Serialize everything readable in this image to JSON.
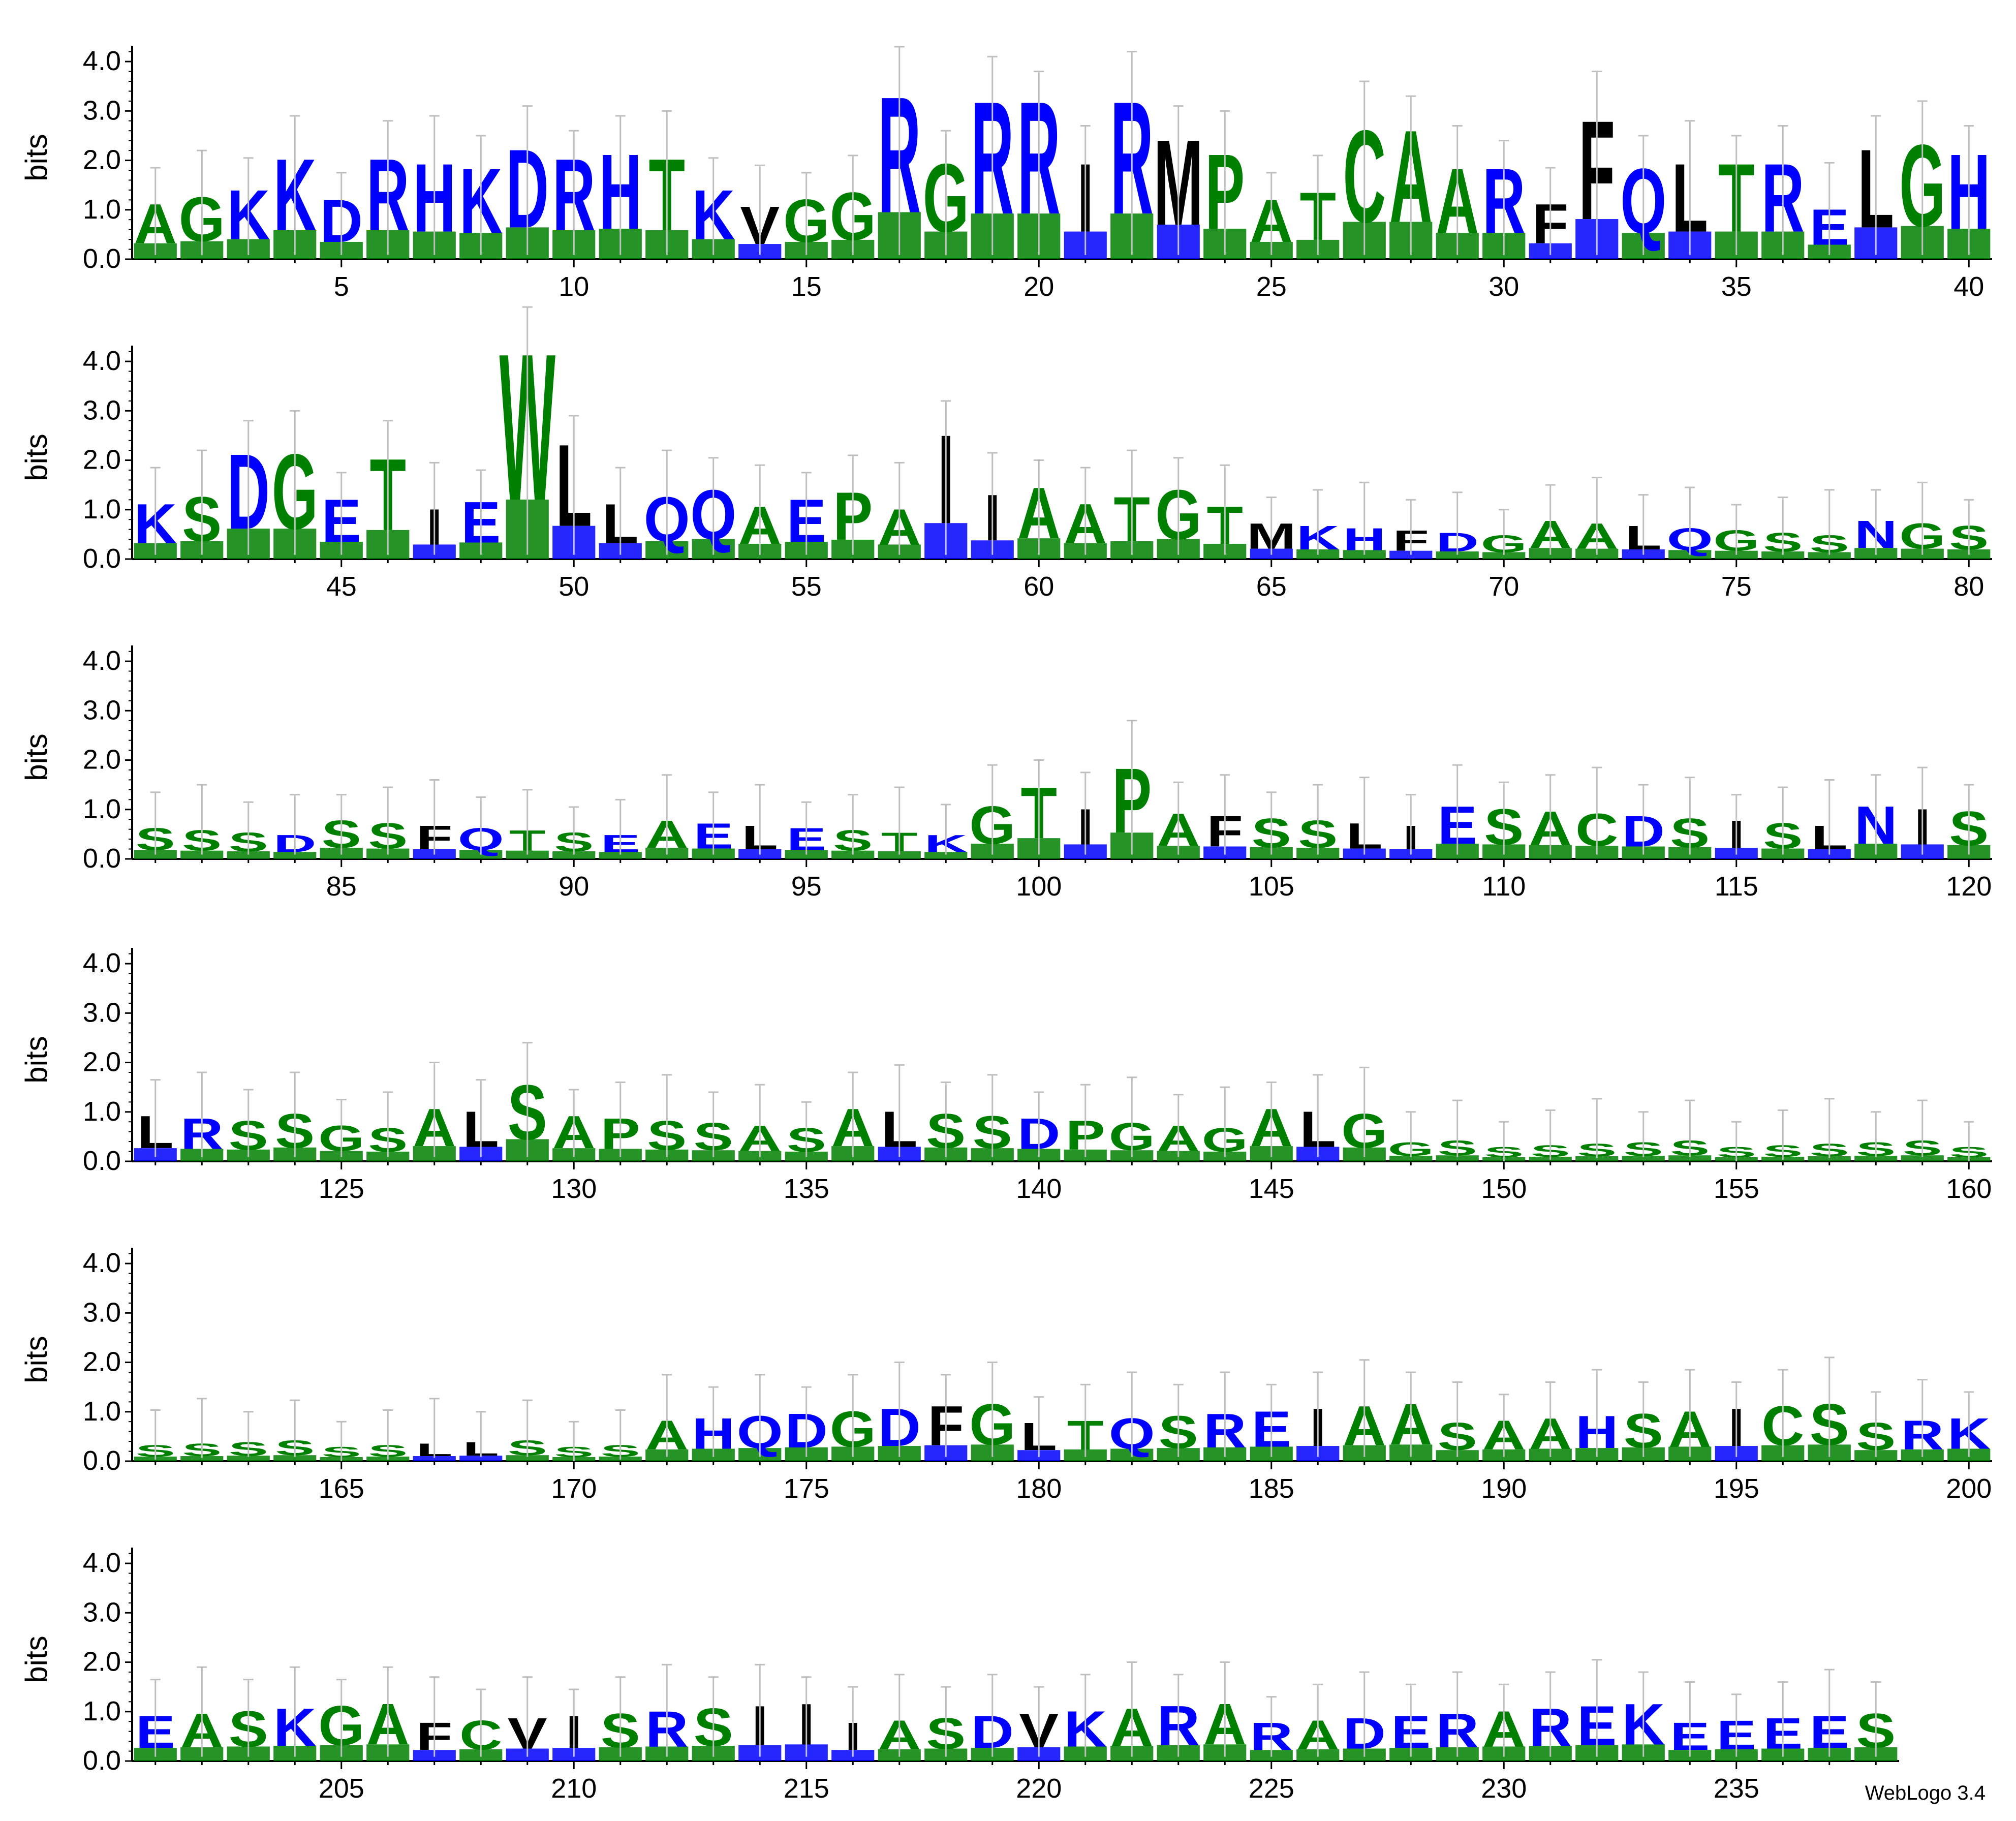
{
  "chart_data": {
    "type": "sequence-logo",
    "software_credit": "WebLogo 3.4",
    "ylabel": "bits",
    "ylim": [
      0,
      4.32
    ],
    "y_ticks": [
      "0.0",
      "1.0",
      "2.0",
      "3.0",
      "4.0"
    ],
    "first_position": 1,
    "last_position": 238,
    "positions_per_row": 40,
    "x_tick_interval": 5,
    "colors": {
      "green": "#008000",
      "blue": "#0000ff",
      "black": "#000000",
      "error_bar": "#bfbfbf"
    },
    "color_groups": {
      "green": [
        "G",
        "S",
        "T",
        "Y",
        "C",
        "Q",
        "N",
        "A",
        "H",
        "W",
        "P"
      ],
      "blue": [
        "K",
        "R",
        "D",
        "E",
        "Q",
        "N"
      ],
      "black": [
        "F",
        "L",
        "I",
        "M",
        "V",
        "W",
        "P",
        "C",
        "Y"
      ]
    },
    "dominant_letters": {
      "1": "A",
      "2": "G",
      "3": "K",
      "4": "K",
      "5": "D",
      "6": "R",
      "7": "H",
      "8": "K",
      "9": "D",
      "10": "R",
      "11": "H",
      "12": "T",
      "13": "K",
      "14": "V",
      "15": "G",
      "16": "G",
      "17": "R",
      "18": "G",
      "19": "R",
      "20": "R",
      "21": "I",
      "22": "R",
      "23": "M",
      "24": "P",
      "25": "A",
      "26": "T",
      "27": "C",
      "28": "A",
      "29": "A",
      "30": "R",
      "31": "F",
      "32": "F",
      "33": "Q",
      "34": "L",
      "35": "T",
      "36": "R",
      "37": "E",
      "38": "L",
      "39": "G",
      "40": "H",
      "41": "K",
      "42": "S",
      "43": "D",
      "44": "G",
      "45": "E",
      "46": "T",
      "47": "I",
      "48": "E",
      "49": "W",
      "50": "L",
      "51": "L",
      "52": "Q",
      "53": "Q",
      "54": "A",
      "55": "E",
      "56": "P",
      "57": "A",
      "58": "I",
      "59": "I",
      "60": "A",
      "61": "A",
      "62": "T",
      "63": "G",
      "64": "T",
      "65": "M",
      "66": "K",
      "67": "H",
      "68": "F",
      "69": "D",
      "70": "G",
      "71": "A",
      "72": "A",
      "73": "L",
      "74": "Q",
      "75": "G",
      "76": "S",
      "77": "S",
      "78": "N",
      "79": "G",
      "80": "S",
      "81": "S",
      "82": "S",
      "83": "S",
      "84": "D",
      "85": "S",
      "86": "S",
      "87": "F",
      "88": "Q",
      "89": "T",
      "90": "S",
      "91": "E",
      "92": "A",
      "93": "E",
      "94": "L",
      "95": "E",
      "96": "S",
      "97": "T",
      "98": "K",
      "99": "G",
      "100": "T",
      "101": "I",
      "102": "P",
      "103": "A",
      "104": "F",
      "105": "S",
      "106": "S",
      "107": "L",
      "108": "I",
      "109": "E",
      "110": "S",
      "111": "A",
      "112": "C",
      "113": "D",
      "114": "S",
      "115": "I",
      "116": "S",
      "117": "L",
      "118": "N",
      "119": "I",
      "120": "S",
      "121": "L",
      "122": "R",
      "123": "S",
      "124": "S",
      "125": "G",
      "126": "S",
      "127": "A",
      "128": "L",
      "129": "S",
      "130": "A",
      "131": "P",
      "132": "S",
      "133": "S",
      "134": "A",
      "135": "S",
      "136": "A",
      "137": "L",
      "138": "S",
      "139": "S",
      "140": "D",
      "141": "P",
      "142": "G",
      "143": "A",
      "144": "G",
      "145": "A",
      "146": "L",
      "147": "G",
      "148": "G",
      "149": "S",
      "150": "S",
      "151": "S",
      "152": "S",
      "153": "S",
      "154": "S",
      "155": "S",
      "156": "S",
      "157": "S",
      "158": "S",
      "159": "S",
      "160": "S",
      "161": "S",
      "162": "S",
      "163": "S",
      "164": "S",
      "165": "S",
      "166": "S",
      "167": "L",
      "168": "L",
      "169": "S",
      "170": "S",
      "171": "S",
      "172": "A",
      "173": "H",
      "174": "Q",
      "175": "D",
      "176": "G",
      "177": "D",
      "178": "F",
      "179": "G",
      "180": "L",
      "181": "T",
      "182": "Q",
      "183": "S",
      "184": "R",
      "185": "E",
      "186": "I",
      "187": "A",
      "188": "A",
      "189": "S",
      "190": "A",
      "191": "A",
      "192": "H",
      "193": "S",
      "194": "A",
      "195": "I",
      "196": "C",
      "197": "S",
      "198": "S",
      "199": "R",
      "200": "K",
      "201": "E",
      "202": "A",
      "203": "S",
      "204": "K",
      "205": "G",
      "206": "A",
      "207": "F",
      "208": "C",
      "209": "V",
      "210": "I",
      "211": "S",
      "212": "R",
      "213": "S",
      "214": "I",
      "215": "I",
      "216": "I",
      "217": "A",
      "218": "S",
      "219": "D",
      "220": "V",
      "221": "K",
      "222": "A",
      "223": "R",
      "224": "A",
      "225": "R",
      "226": "A",
      "227": "D",
      "228": "E",
      "229": "R",
      "230": "A",
      "231": "R",
      "232": "E",
      "233": "K",
      "234": "E",
      "235": "E",
      "236": "E",
      "237": "E",
      "238": "S"
    }
  },
  "row1": {
    "ticks": [
      "5",
      "10",
      "15",
      "20",
      "25",
      "30",
      "35",
      "40"
    ]
  },
  "row2": {
    "ticks": [
      "45",
      "50",
      "55",
      "60",
      "65",
      "70",
      "75",
      "80"
    ]
  },
  "row3": {
    "ticks": [
      "85",
      "90",
      "95",
      "100",
      "105",
      "110",
      "115",
      "120"
    ]
  },
  "row4": {
    "ticks": [
      "125",
      "130",
      "135",
      "140",
      "145",
      "150",
      "155",
      "160"
    ]
  },
  "row5": {
    "ticks": [
      "165",
      "170",
      "175",
      "180",
      "185",
      "190",
      "195",
      "200"
    ]
  },
  "row6": {
    "ticks": [
      "205",
      "210",
      "215",
      "220",
      "225",
      "230",
      "235"
    ]
  }
}
